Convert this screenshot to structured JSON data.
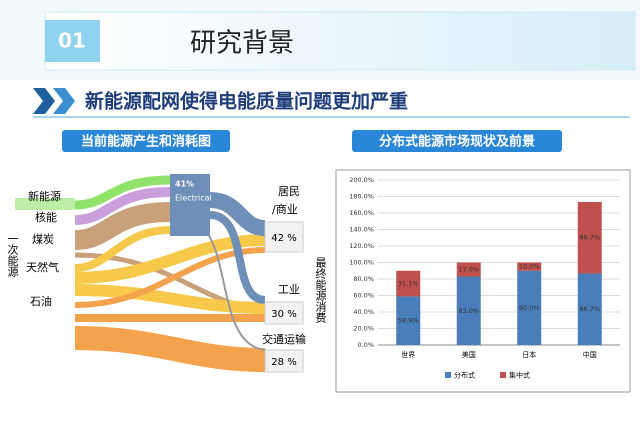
{
  "header": {
    "number": "01",
    "title": "研究背景",
    "subtitle": "新能源配网使得电能质量问题更加严重"
  },
  "left_panel": {
    "title": "当前能源产生和消耗图",
    "sources": [
      "新能源",
      "核能",
      "煤炭",
      "天然气",
      "石油"
    ],
    "source_group": "一次能源",
    "middle": {
      "value": "41%",
      "label": "Electrical"
    },
    "sinks": [
      {
        "label": "居民",
        "label2": "/商业",
        "value": "42 %"
      },
      {
        "label": "工业",
        "value": "30 %"
      },
      {
        "label": "交通运输",
        "value": "28 %"
      }
    ],
    "sink_group": "最终能源消费"
  },
  "chart_data": {
    "type": "stacked_bar",
    "title": "分布式能源市场现状及前景",
    "categories": [
      "世界",
      "美国",
      "日本",
      "中国"
    ],
    "series": [
      {
        "name": "分布式",
        "color": "#4a7ebb",
        "values": [
          58.9,
          83.0,
          90.0,
          86.7
        ],
        "value_labels": [
          "58.9%",
          "83.0%",
          "90.0%",
          "86.7%"
        ]
      },
      {
        "name": "集中式",
        "color": "#c0504d",
        "values": [
          31.1,
          17.0,
          10.0,
          86.7
        ],
        "value_labels": [
          "31.1%",
          "17.0%",
          "10.0%",
          "86.7%"
        ]
      }
    ],
    "ylim": [
      0,
      200
    ],
    "yticks": [
      {
        "value": 0,
        "label": "0.0%"
      },
      {
        "value": 20,
        "label": "20.0%"
      },
      {
        "value": 40,
        "label": "40.0%"
      },
      {
        "value": 60,
        "label": "60.0%"
      },
      {
        "value": 80,
        "label": "80.0%"
      },
      {
        "value": 100,
        "label": "100.0%"
      },
      {
        "value": 120,
        "label": "120.0%"
      },
      {
        "value": 140,
        "label": "140.0%"
      },
      {
        "value": 160,
        "label": "160.0%"
      },
      {
        "value": 180,
        "label": "180.0%"
      },
      {
        "value": 200,
        "label": "200.0%"
      }
    ],
    "grid": true,
    "legend": "bottom"
  }
}
